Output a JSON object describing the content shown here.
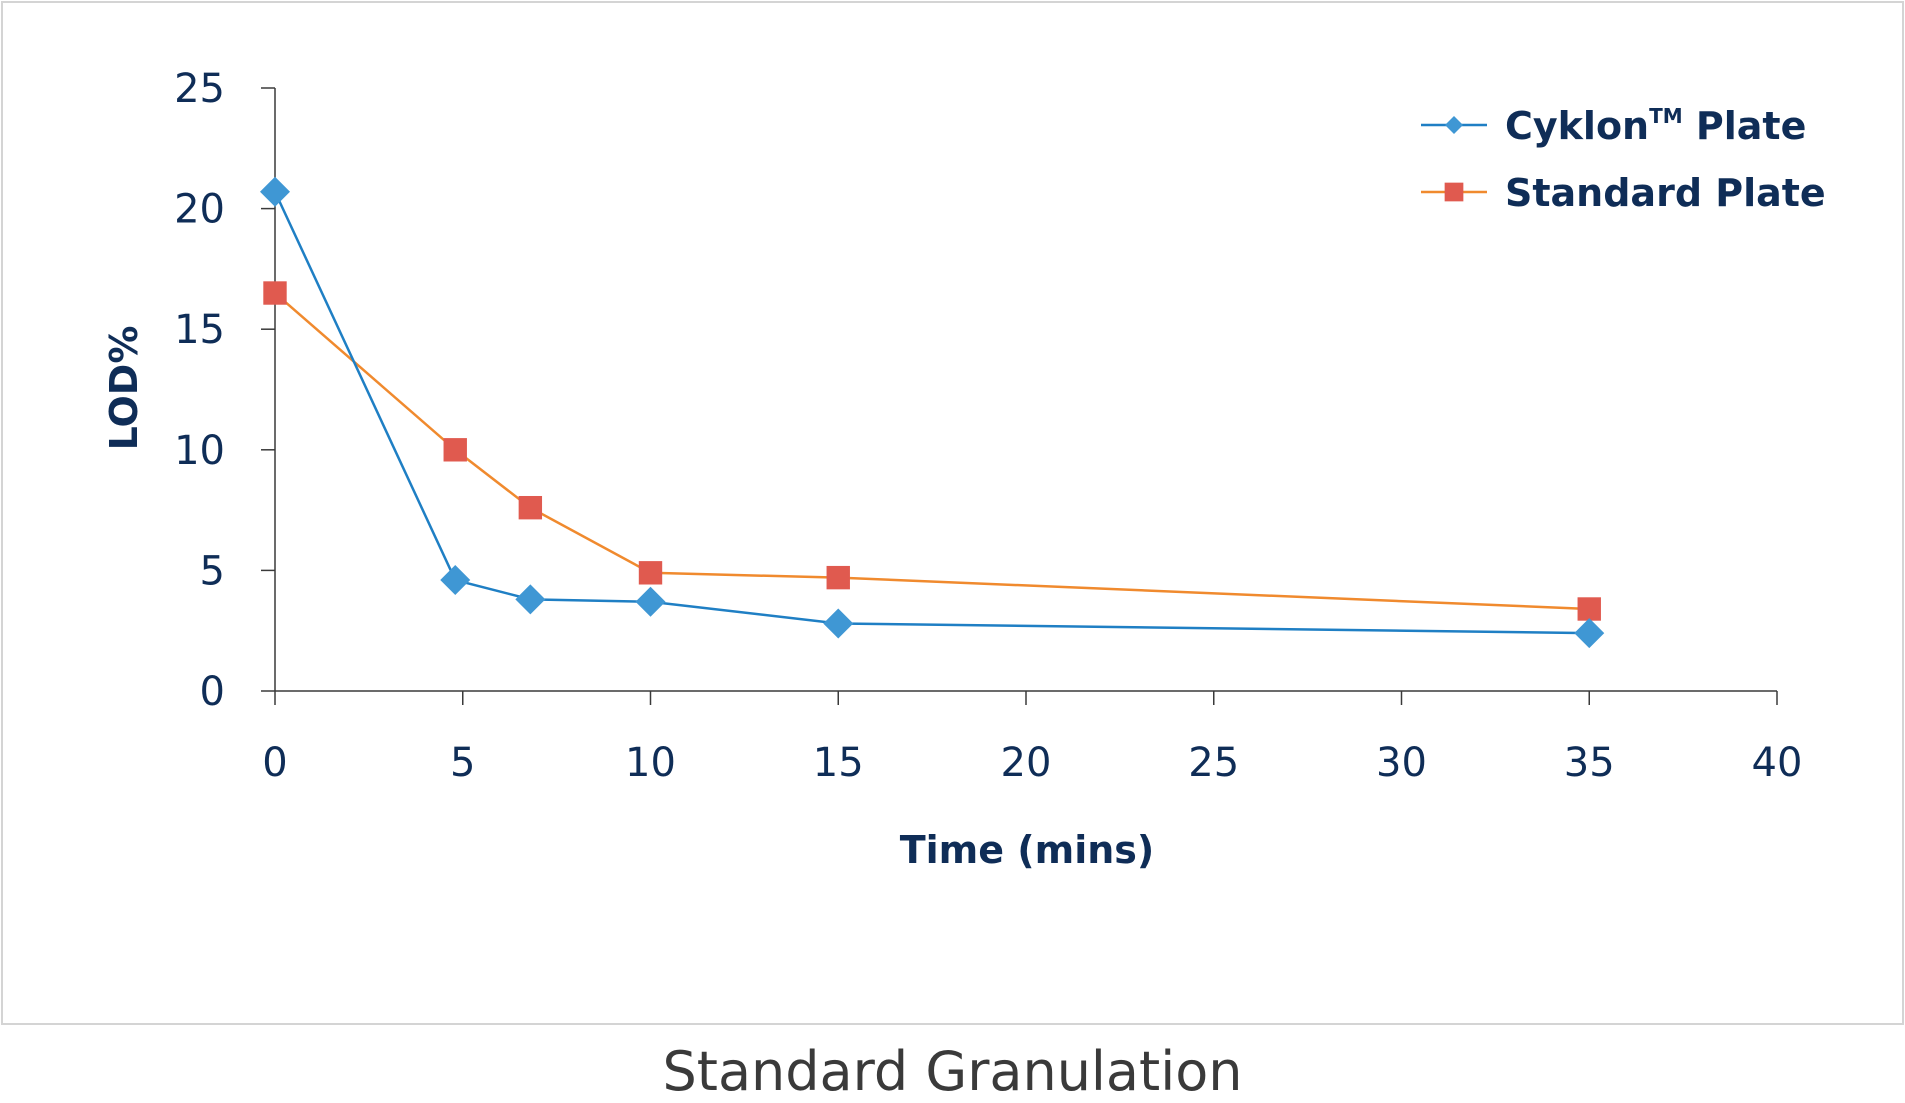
{
  "chart_data": {
    "type": "line",
    "title": "",
    "caption": "Standard Granulation",
    "xlabel": "Time (mins)",
    "ylabel": "LOD%",
    "xlim": [
      0,
      40
    ],
    "ylim": [
      0,
      25
    ],
    "x_ticks": [
      0,
      5,
      10,
      15,
      20,
      25,
      30,
      35,
      40
    ],
    "y_ticks": [
      0,
      5,
      10,
      15,
      20,
      25
    ],
    "grid": false,
    "legend_position": "top-right",
    "series": [
      {
        "name": "Cyklon",
        "name_superscript": "TM",
        "name_suffix": " Plate",
        "color": "#1f7fc4",
        "marker": "diamond",
        "marker_color": "#3f97d4",
        "points": [
          {
            "x": 0,
            "y": 20.7
          },
          {
            "x": 4.8,
            "y": 4.6
          },
          {
            "x": 6.8,
            "y": 3.8
          },
          {
            "x": 10,
            "y": 3.7
          },
          {
            "x": 15,
            "y": 2.8
          },
          {
            "x": 35,
            "y": 2.4
          }
        ]
      },
      {
        "name": "Standard Plate",
        "color": "#f08a2e",
        "marker": "square",
        "marker_color": "#e05a4f",
        "points": [
          {
            "x": 0,
            "y": 16.5
          },
          {
            "x": 4.8,
            "y": 10.0
          },
          {
            "x": 6.8,
            "y": 7.6
          },
          {
            "x": 10,
            "y": 4.9
          },
          {
            "x": 15,
            "y": 4.7
          },
          {
            "x": 35,
            "y": 3.4
          }
        ]
      }
    ]
  }
}
